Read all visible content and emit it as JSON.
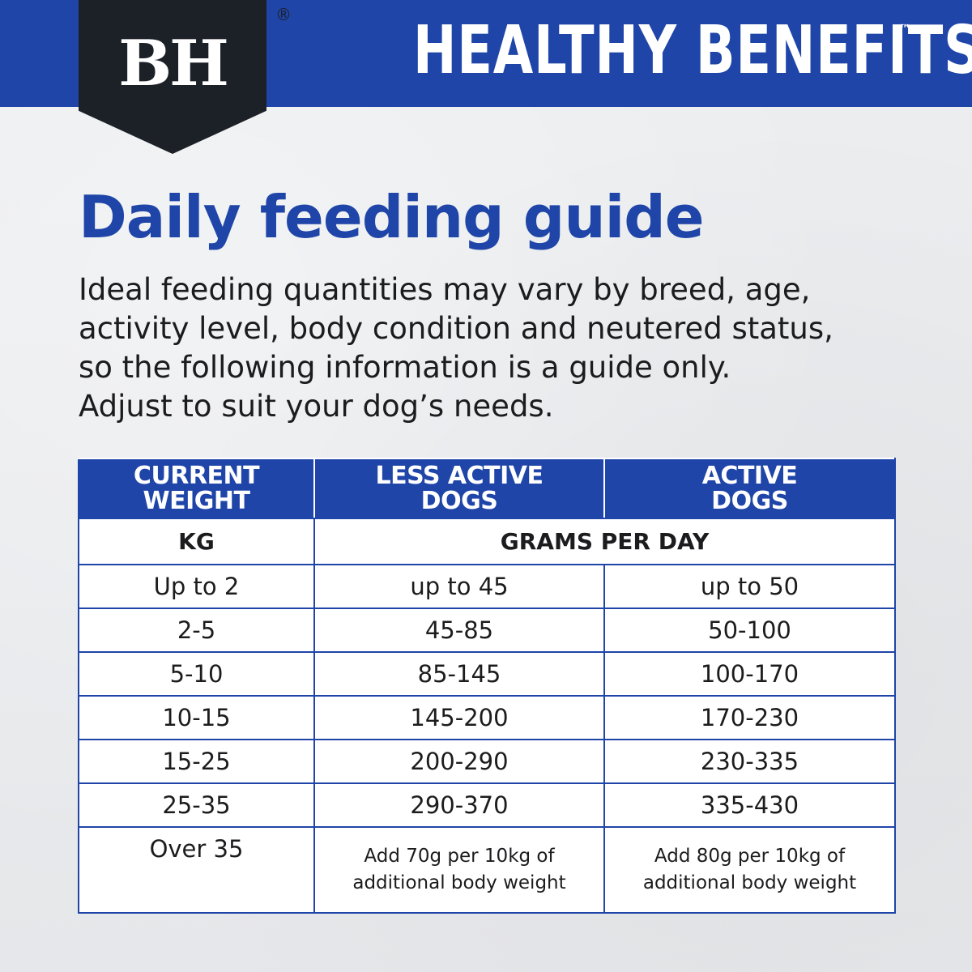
{
  "brand": {
    "logo": "BH",
    "logo_mark": "®",
    "title": "HEALTHY BENEFITS",
    "title_mark": "™"
  },
  "guide": {
    "heading": "Daily feeding guide",
    "intro_lines": [
      "Ideal feeding quantities may vary by breed, age,",
      "activity level, body condition and neutered status,",
      "so the following information is a guide only.",
      "Adjust to suit your dog’s needs."
    ]
  },
  "table": {
    "headers": [
      [
        "CURRENT",
        "WEIGHT"
      ],
      [
        "LESS ACTIVE",
        "DOGS"
      ],
      [
        "ACTIVE",
        "DOGS"
      ]
    ],
    "units": {
      "weight": "KG",
      "amount": "GRAMS PER DAY"
    },
    "rows": [
      [
        "Up to 2",
        "up to 45",
        "up to 50"
      ],
      [
        "2-5",
        "45-85",
        "50-100"
      ],
      [
        "5-10",
        "85-145",
        "100-170"
      ],
      [
        "10-15",
        "145-200",
        "170-230"
      ],
      [
        "15-25",
        "200-290",
        "230-335"
      ],
      [
        "25-35",
        "290-370",
        "335-430"
      ]
    ],
    "last_row": {
      "weight": "Over 35",
      "less_active": [
        "Add 70g per 10kg of",
        "additional body weight"
      ],
      "active": [
        "Add 80g per 10kg of",
        "additional body weight"
      ]
    }
  },
  "colors": {
    "brand_blue": "#1f45a8",
    "logo_dark": "#1c2128",
    "background": "#e9eaec"
  }
}
